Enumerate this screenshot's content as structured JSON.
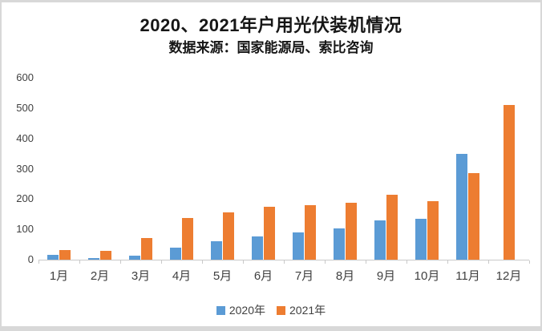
{
  "page": {
    "title": "2020、2021年户用光伏装机情况",
    "subtitle": "数据来源：国家能源局、索比咨询"
  },
  "colors": {
    "series_2020": "#5B9BD5",
    "series_2021": "#ED7D31",
    "axis_line": "#c9c9c9",
    "axis_text": "#404040",
    "page_border": "#d8d8d8"
  },
  "chart_data": {
    "type": "bar",
    "title": "2020、2021年户用光伏装机情况",
    "subtitle": "数据来源：国家能源局、索比咨询",
    "categories": [
      "1月",
      "2月",
      "3月",
      "4月",
      "5月",
      "6月",
      "7月",
      "8月",
      "9月",
      "10月",
      "11月",
      "12月"
    ],
    "series": [
      {
        "name": "2020年",
        "color": "#5B9BD5",
        "values": [
          15,
          5,
          14,
          40,
          61,
          77,
          91,
          104,
          130,
          136,
          350,
          null
        ]
      },
      {
        "name": "2021年",
        "color": "#ED7D31",
        "values": [
          33,
          28,
          72,
          137,
          156,
          175,
          179,
          188,
          215,
          193,
          285,
          510
        ]
      }
    ],
    "xlabel": "",
    "ylabel": "",
    "ylim": [
      0,
      600
    ],
    "yticks": [
      0,
      100,
      200,
      300,
      400,
      500,
      600
    ],
    "grid": false,
    "legend_position": "bottom"
  }
}
